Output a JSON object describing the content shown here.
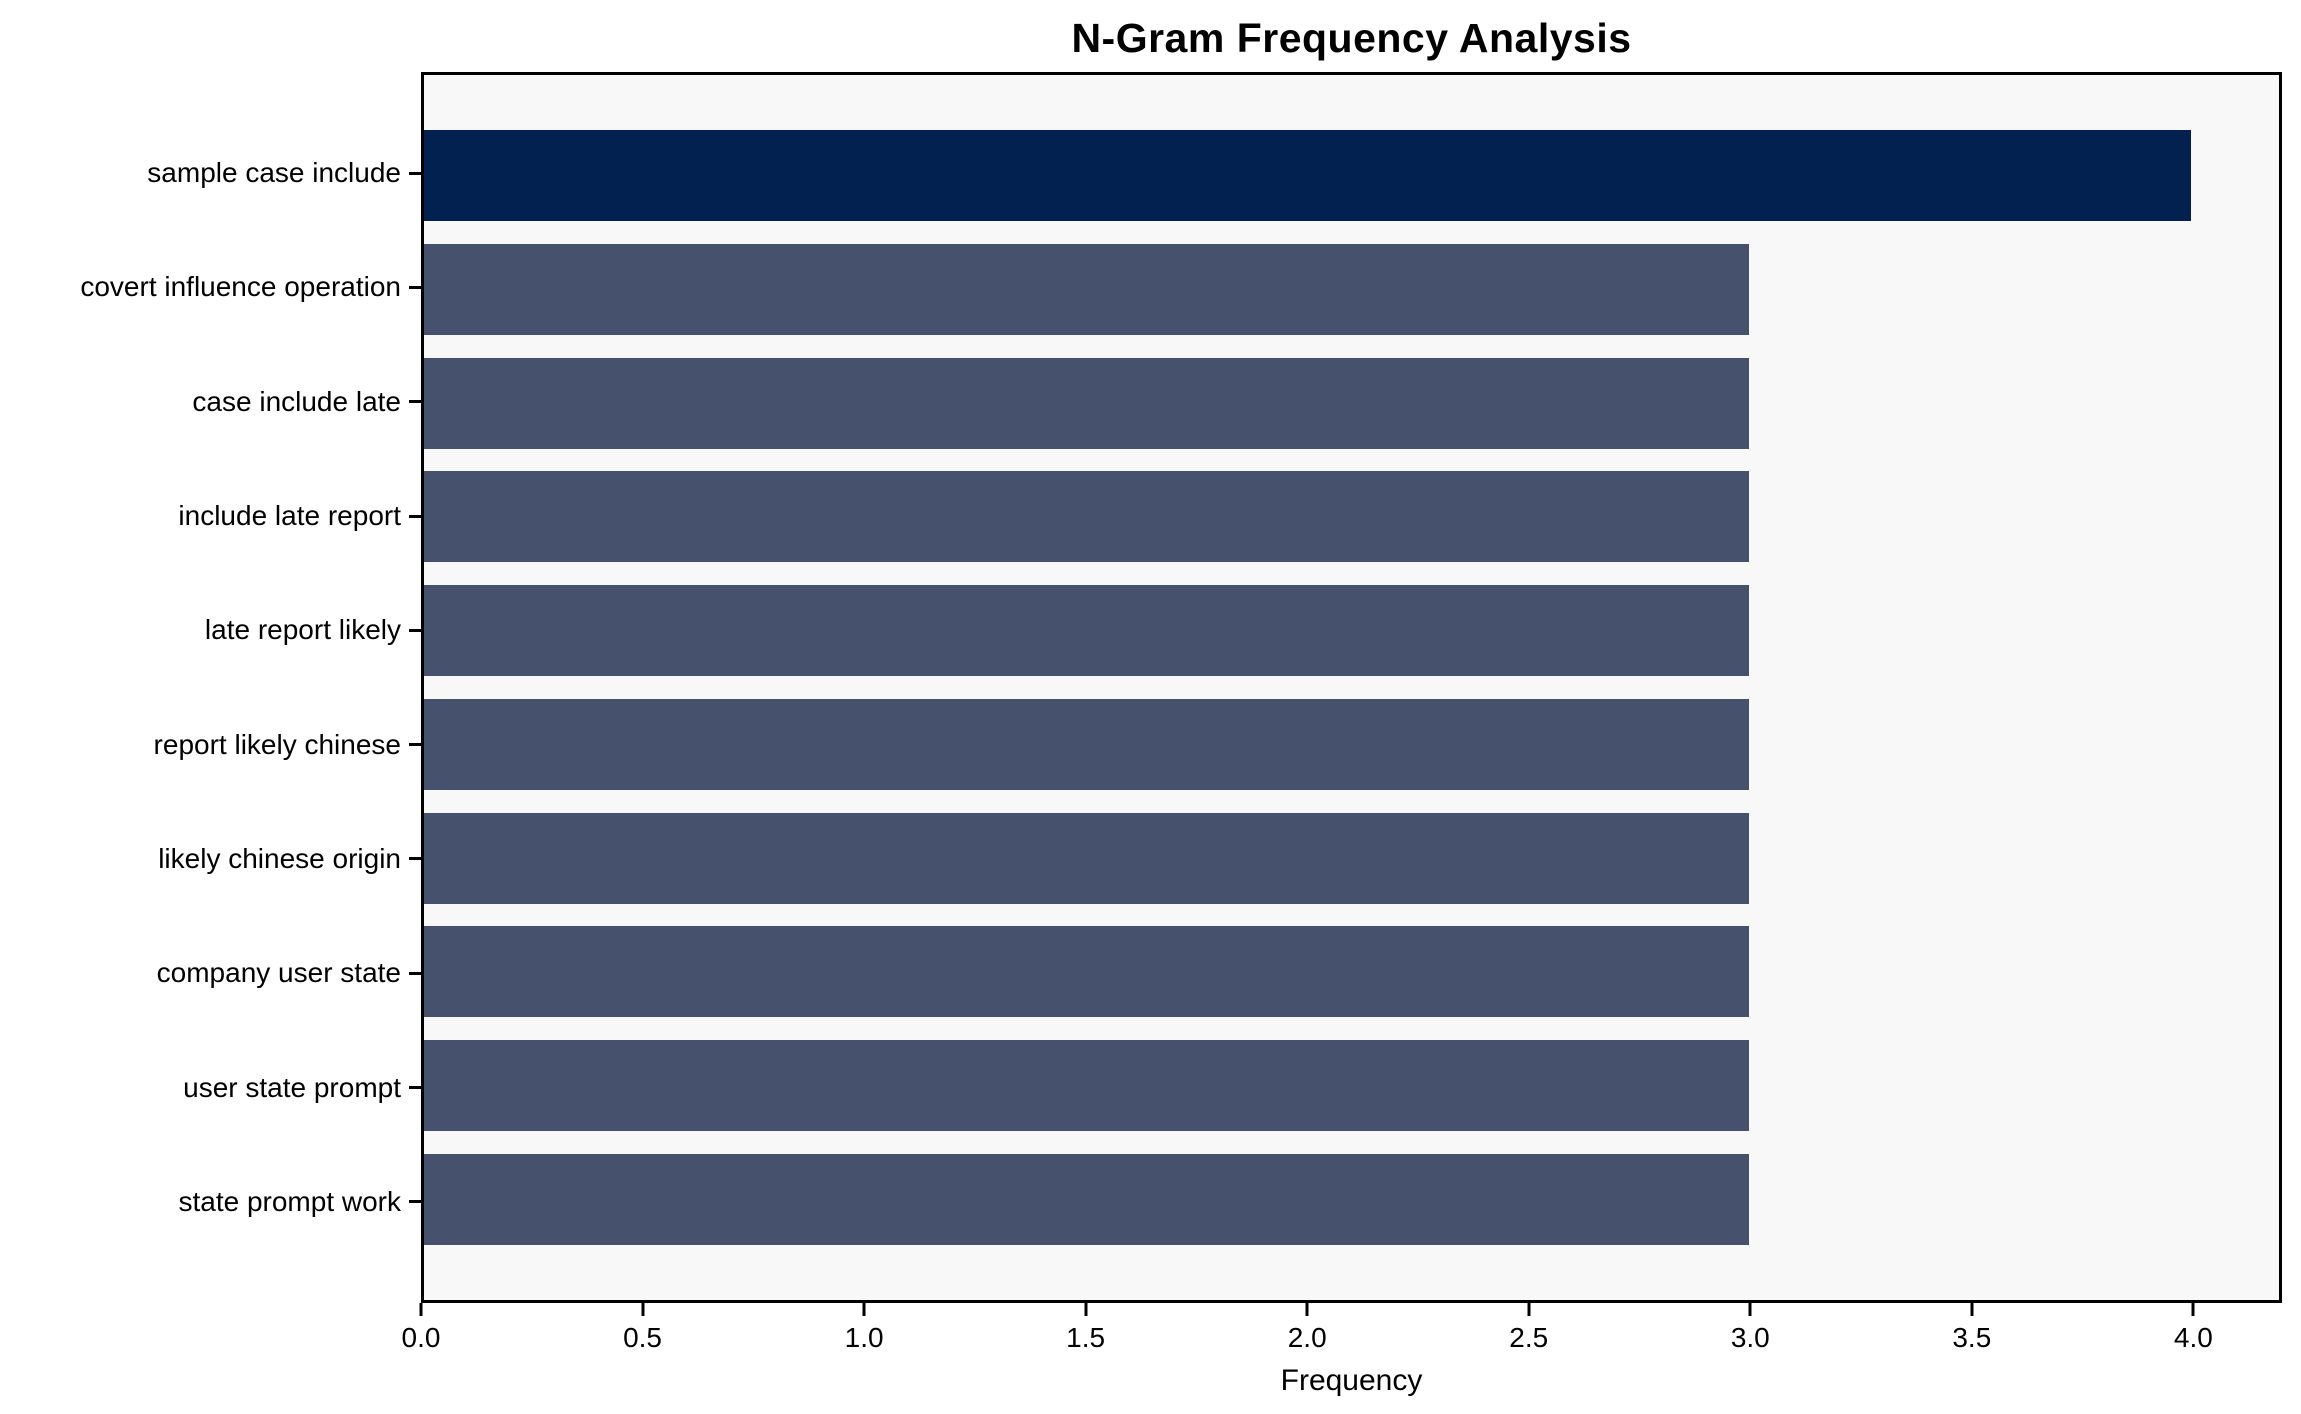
{
  "chart_data": {
    "type": "bar",
    "orientation": "horizontal",
    "title": "N-Gram Frequency Analysis",
    "xlabel": "Frequency",
    "ylabel": "",
    "categories": [
      "sample case include",
      "covert influence operation",
      "case include late",
      "include late report",
      "late report likely",
      "report likely chinese",
      "likely chinese origin",
      "company user state",
      "user state prompt",
      "state prompt work"
    ],
    "values": [
      4,
      3,
      3,
      3,
      3,
      3,
      3,
      3,
      3,
      3
    ],
    "xlim": [
      0,
      4.2
    ],
    "xticks": [
      0.0,
      0.5,
      1.0,
      1.5,
      2.0,
      2.5,
      3.0,
      3.5,
      4.0
    ],
    "xtick_labels": [
      "0.0",
      "0.5",
      "1.0",
      "1.5",
      "2.0",
      "2.5",
      "3.0",
      "3.5",
      "4.0"
    ],
    "grid": false,
    "legend": null,
    "colors": {
      "highlight_bar": "#022050",
      "default_bar": "#46516E",
      "plot_background": "#F8F8F8",
      "figure_background": "#FFFFFF",
      "spine": "#000000",
      "text": "#000000"
    },
    "highlight_index": 0
  }
}
